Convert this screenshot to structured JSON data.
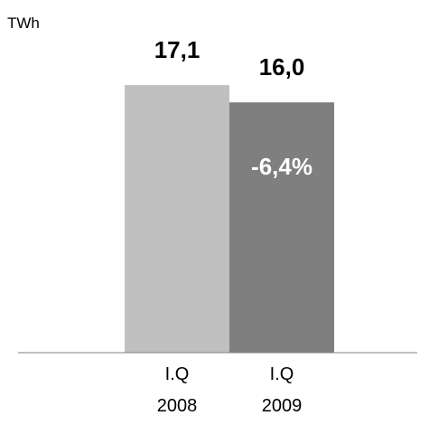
{
  "chart_data": {
    "type": "bar",
    "unit_label": "TWh",
    "categories": [
      {
        "line1": "I.Q",
        "line2": "2008"
      },
      {
        "line1": "I.Q",
        "line2": "2009"
      }
    ],
    "values": [
      17.1,
      16.0
    ],
    "value_labels": [
      "17,1",
      "16,0"
    ],
    "colors": [
      "#c0c0c0",
      "#7f7f7f"
    ],
    "change_label": "-6,4%",
    "ylim": [
      0,
      20
    ],
    "grid": false,
    "legend": "none"
  }
}
